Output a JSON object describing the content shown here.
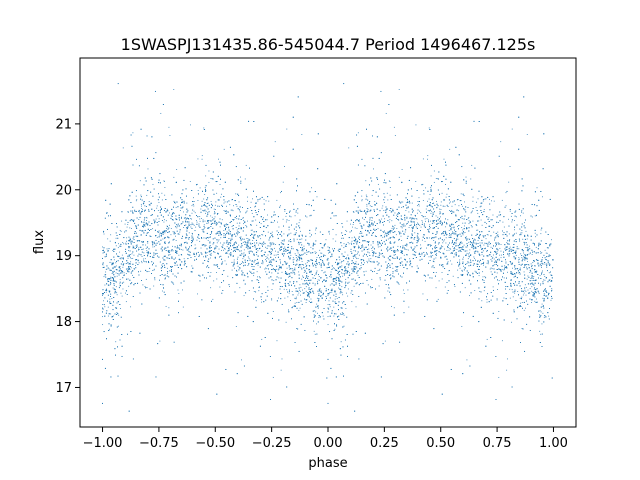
{
  "chart_data": {
    "type": "scatter",
    "title": "1SWASPJ131435.86-545044.7 Period 1496467.125s",
    "xlabel": "phase",
    "ylabel": "flux",
    "xlim": [
      -1.1,
      1.1
    ],
    "ylim": [
      16.4,
      22.0
    ],
    "x_ticks": [
      -1.0,
      -0.75,
      -0.5,
      -0.25,
      0.0,
      0.25,
      0.5,
      0.75,
      1.0
    ],
    "x_tick_labels": [
      "−1.00",
      "−0.75",
      "−0.50",
      "−0.25",
      "0.00",
      "0.25",
      "0.50",
      "0.75",
      "1.00"
    ],
    "y_ticks": [
      17,
      18,
      19,
      20,
      21
    ],
    "y_tick_labels": [
      "17",
      "18",
      "19",
      "20",
      "21"
    ],
    "grid": false,
    "marker_color": "#1f77b4",
    "series_profile": {
      "phase": [
        -1.0,
        -0.95,
        -0.9,
        -0.85,
        -0.8,
        -0.75,
        -0.7,
        -0.65,
        -0.6,
        -0.55,
        -0.5,
        -0.45,
        -0.4,
        -0.35,
        -0.3,
        -0.25,
        -0.2,
        -0.15,
        -0.1,
        -0.05,
        0.0,
        0.05,
        0.1,
        0.15,
        0.2,
        0.25,
        0.3,
        0.35,
        0.4,
        0.45,
        0.5,
        0.55,
        0.6,
        0.65,
        0.7,
        0.75,
        0.8,
        0.85,
        0.9,
        0.95,
        1.0
      ],
      "median_flux": [
        18.7,
        18.6,
        19.0,
        19.2,
        19.3,
        19.3,
        19.2,
        19.3,
        19.3,
        19.4,
        19.3,
        19.3,
        19.2,
        19.2,
        19.1,
        19.0,
        19.0,
        18.9,
        18.8,
        18.7,
        18.7,
        18.6,
        19.0,
        19.2,
        19.3,
        19.3,
        19.2,
        19.3,
        19.3,
        19.4,
        19.3,
        19.3,
        19.2,
        19.2,
        19.1,
        19.0,
        19.0,
        18.9,
        18.8,
        18.7,
        18.7
      ],
      "spread": 0.45,
      "flux_range": [
        16.6,
        21.7
      ]
    }
  }
}
